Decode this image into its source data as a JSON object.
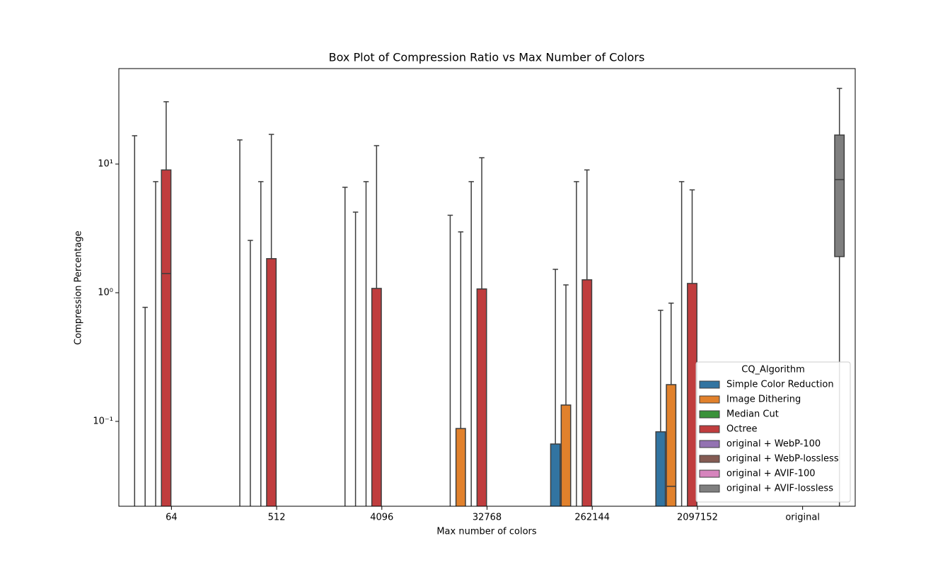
{
  "chart_data": {
    "type": "box",
    "title": "Box Plot of Compression Ratio vs Max Number of Colors",
    "x_label": "Max number of colors",
    "y_label": "Compression Percentage",
    "log_scale": true,
    "legend_title": "CQ_Algorithm",
    "legend_position": "lower right",
    "categories": [
      "64",
      "512",
      "4096",
      "32768",
      "262144",
      "2097152",
      "original"
    ],
    "ylim": [
      0.0219,
      55.2
    ],
    "yticks": [
      {
        "value": 0.1,
        "label": "10⁻¹"
      },
      {
        "value": 1,
        "label": "10⁰"
      },
      {
        "value": 10,
        "label": "10¹"
      }
    ],
    "series": [
      {
        "name": "Simple Color Reduction",
        "color": "#3274a1",
        "values": [
          {
            "low": 0.01,
            "q1": 0.01,
            "median": 0.01,
            "q3": 0.01,
            "high": 16.6
          },
          {
            "low": 0.01,
            "q1": 0.01,
            "median": 0.01,
            "q3": 0.01,
            "high": 15.4
          },
          {
            "low": 0.01,
            "q1": 0.01,
            "median": 0.01,
            "q3": 0.01,
            "high": 6.6
          },
          {
            "low": 0.01,
            "q1": 0.01,
            "median": 0.01,
            "q3": 0.01,
            "high": 4.0
          },
          {
            "low": 0.01,
            "q1": 0.01,
            "median": 0.01,
            "q3": 0.0667,
            "high": 1.52
          },
          {
            "low": 0.01,
            "q1": 0.01,
            "median": 0.01,
            "q3": 0.083,
            "high": 0.73
          },
          null
        ]
      },
      {
        "name": "Image Dithering",
        "color": "#e1812c",
        "values": [
          {
            "low": 0.01,
            "q1": 0.01,
            "median": 0.01,
            "q3": 0.01,
            "high": 0.77
          },
          {
            "low": 0.01,
            "q1": 0.01,
            "median": 0.01,
            "q3": 0.01,
            "high": 2.55
          },
          {
            "low": 0.01,
            "q1": 0.01,
            "median": 0.01,
            "q3": 0.01,
            "high": 4.23
          },
          {
            "low": 0.01,
            "q1": 0.01,
            "median": 0.01,
            "q3": 0.088,
            "high": 2.97
          },
          {
            "low": 0.01,
            "q1": 0.01,
            "median": 0.01,
            "q3": 0.134,
            "high": 1.15
          },
          {
            "low": 0.01,
            "q1": 0.01,
            "median": 0.0313,
            "q3": 0.193,
            "high": 0.83
          },
          null
        ]
      },
      {
        "name": "Median Cut",
        "color": "#3a923a",
        "values": [
          {
            "low": 0.01,
            "q1": 0.01,
            "median": 0.01,
            "q3": 0.01,
            "high": 7.3
          },
          {
            "low": 0.01,
            "q1": 0.01,
            "median": 0.01,
            "q3": 0.01,
            "high": 7.3
          },
          {
            "low": 0.01,
            "q1": 0.01,
            "median": 0.01,
            "q3": 0.01,
            "high": 7.3
          },
          {
            "low": 0.01,
            "q1": 0.01,
            "median": 0.01,
            "q3": 0.01,
            "high": 7.3
          },
          {
            "low": 0.01,
            "q1": 0.01,
            "median": 0.01,
            "q3": 0.01,
            "high": 7.3
          },
          {
            "low": 0.01,
            "q1": 0.01,
            "median": 0.01,
            "q3": 0.01,
            "high": 7.3
          },
          null
        ]
      },
      {
        "name": "Octree",
        "color": "#c03d3e",
        "values": [
          {
            "low": 0.01,
            "q1": 0.01,
            "median": 1.41,
            "q3": 9.0,
            "high": 30.5
          },
          {
            "low": 0.01,
            "q1": 0.01,
            "median": 0.01,
            "q3": 1.84,
            "high": 17.0
          },
          {
            "low": 0.01,
            "q1": 0.01,
            "median": 0.01,
            "q3": 1.08,
            "high": 13.9
          },
          {
            "low": 0.01,
            "q1": 0.01,
            "median": 0.01,
            "q3": 1.07,
            "high": 11.2
          },
          {
            "low": 0.01,
            "q1": 0.01,
            "median": 0.01,
            "q3": 1.26,
            "high": 9.0
          },
          {
            "low": 0.01,
            "q1": 0.01,
            "median": 0.01,
            "q3": 1.18,
            "high": 6.3
          },
          null
        ]
      },
      {
        "name": "original + WebP-100",
        "color": "#9372b2",
        "values": [
          null,
          null,
          null,
          null,
          null,
          null,
          null
        ]
      },
      {
        "name": "original + WebP-lossless",
        "color": "#845b53",
        "values": [
          null,
          null,
          null,
          null,
          null,
          null,
          null
        ]
      },
      {
        "name": "original + AVIF-100",
        "color": "#d684bd",
        "values": [
          null,
          null,
          null,
          null,
          null,
          null,
          null
        ]
      },
      {
        "name": "original + AVIF-lossless",
        "color": "#7f7f7f",
        "values": [
          null,
          null,
          null,
          null,
          null,
          null,
          {
            "low": 0.01,
            "q1": 1.91,
            "median": 7.57,
            "q3": 16.8,
            "high": 38.7
          }
        ]
      }
    ]
  }
}
